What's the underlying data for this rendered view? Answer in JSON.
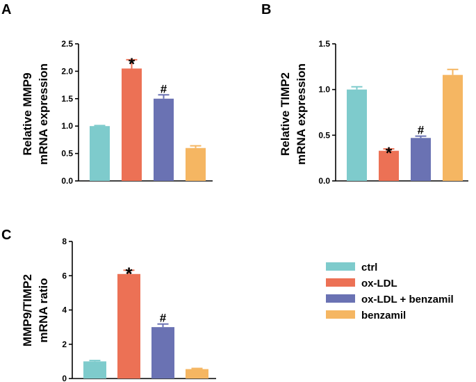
{
  "chart_data": [
    {
      "type": "bar",
      "panel_label": "A",
      "categories": [
        "ctrl",
        "ox-LDL",
        "ox-LDL + benzamil",
        "benzamil"
      ],
      "values": [
        1.0,
        2.05,
        1.5,
        0.6
      ],
      "errors": [
        0.01,
        0.16,
        0.07,
        0.04
      ],
      "annotations": [
        "",
        "*",
        "#",
        ""
      ],
      "ylabel_lines": [
        "Relative  MMP9",
        "mRNA expression"
      ],
      "ylim": [
        0,
        2.5
      ],
      "yticks": [
        "0.0",
        "0.5",
        "1.0",
        "1.5",
        "2.0",
        "2.5"
      ],
      "grid": false
    },
    {
      "type": "bar",
      "panel_label": "B",
      "categories": [
        "ctrl",
        "ox-LDL",
        "ox-LDL + benzamil",
        "benzamil"
      ],
      "values": [
        1.0,
        0.33,
        0.47,
        1.16
      ],
      "errors": [
        0.03,
        0.02,
        0.02,
        0.06
      ],
      "annotations": [
        "",
        "*",
        "#",
        ""
      ],
      "ylabel_lines": [
        "Relative  TIMP2",
        "mRNA expression"
      ],
      "ylim": [
        0,
        1.5
      ],
      "yticks": [
        "0.0",
        "0.5",
        "1.0",
        "1.5"
      ],
      "grid": false
    },
    {
      "type": "bar",
      "panel_label": "C",
      "categories": [
        "ctrl",
        "ox-LDL",
        "ox-LDL + benzamil",
        "benzamil"
      ],
      "values": [
        1.0,
        6.1,
        3.0,
        0.55
      ],
      "errors": [
        0.05,
        0.22,
        0.18,
        0.04
      ],
      "annotations": [
        "",
        "*",
        "#",
        ""
      ],
      "ylabel_lines": [
        "MMP9/TIMP2",
        "mRNA ratio"
      ],
      "ylim": [
        0,
        8
      ],
      "yticks": [
        "0",
        "2",
        "4",
        "6",
        "8"
      ],
      "grid": false
    }
  ],
  "legend": {
    "placement": "bottom-right",
    "items": [
      {
        "label": "ctrl",
        "color": "#7ecbcc"
      },
      {
        "label": "ox-LDL",
        "color": "#ec7155"
      },
      {
        "label": "ox-LDL + benzamil",
        "color": "#6a72b3"
      },
      {
        "label": "benzamil",
        "color": "#f5b662"
      }
    ]
  }
}
